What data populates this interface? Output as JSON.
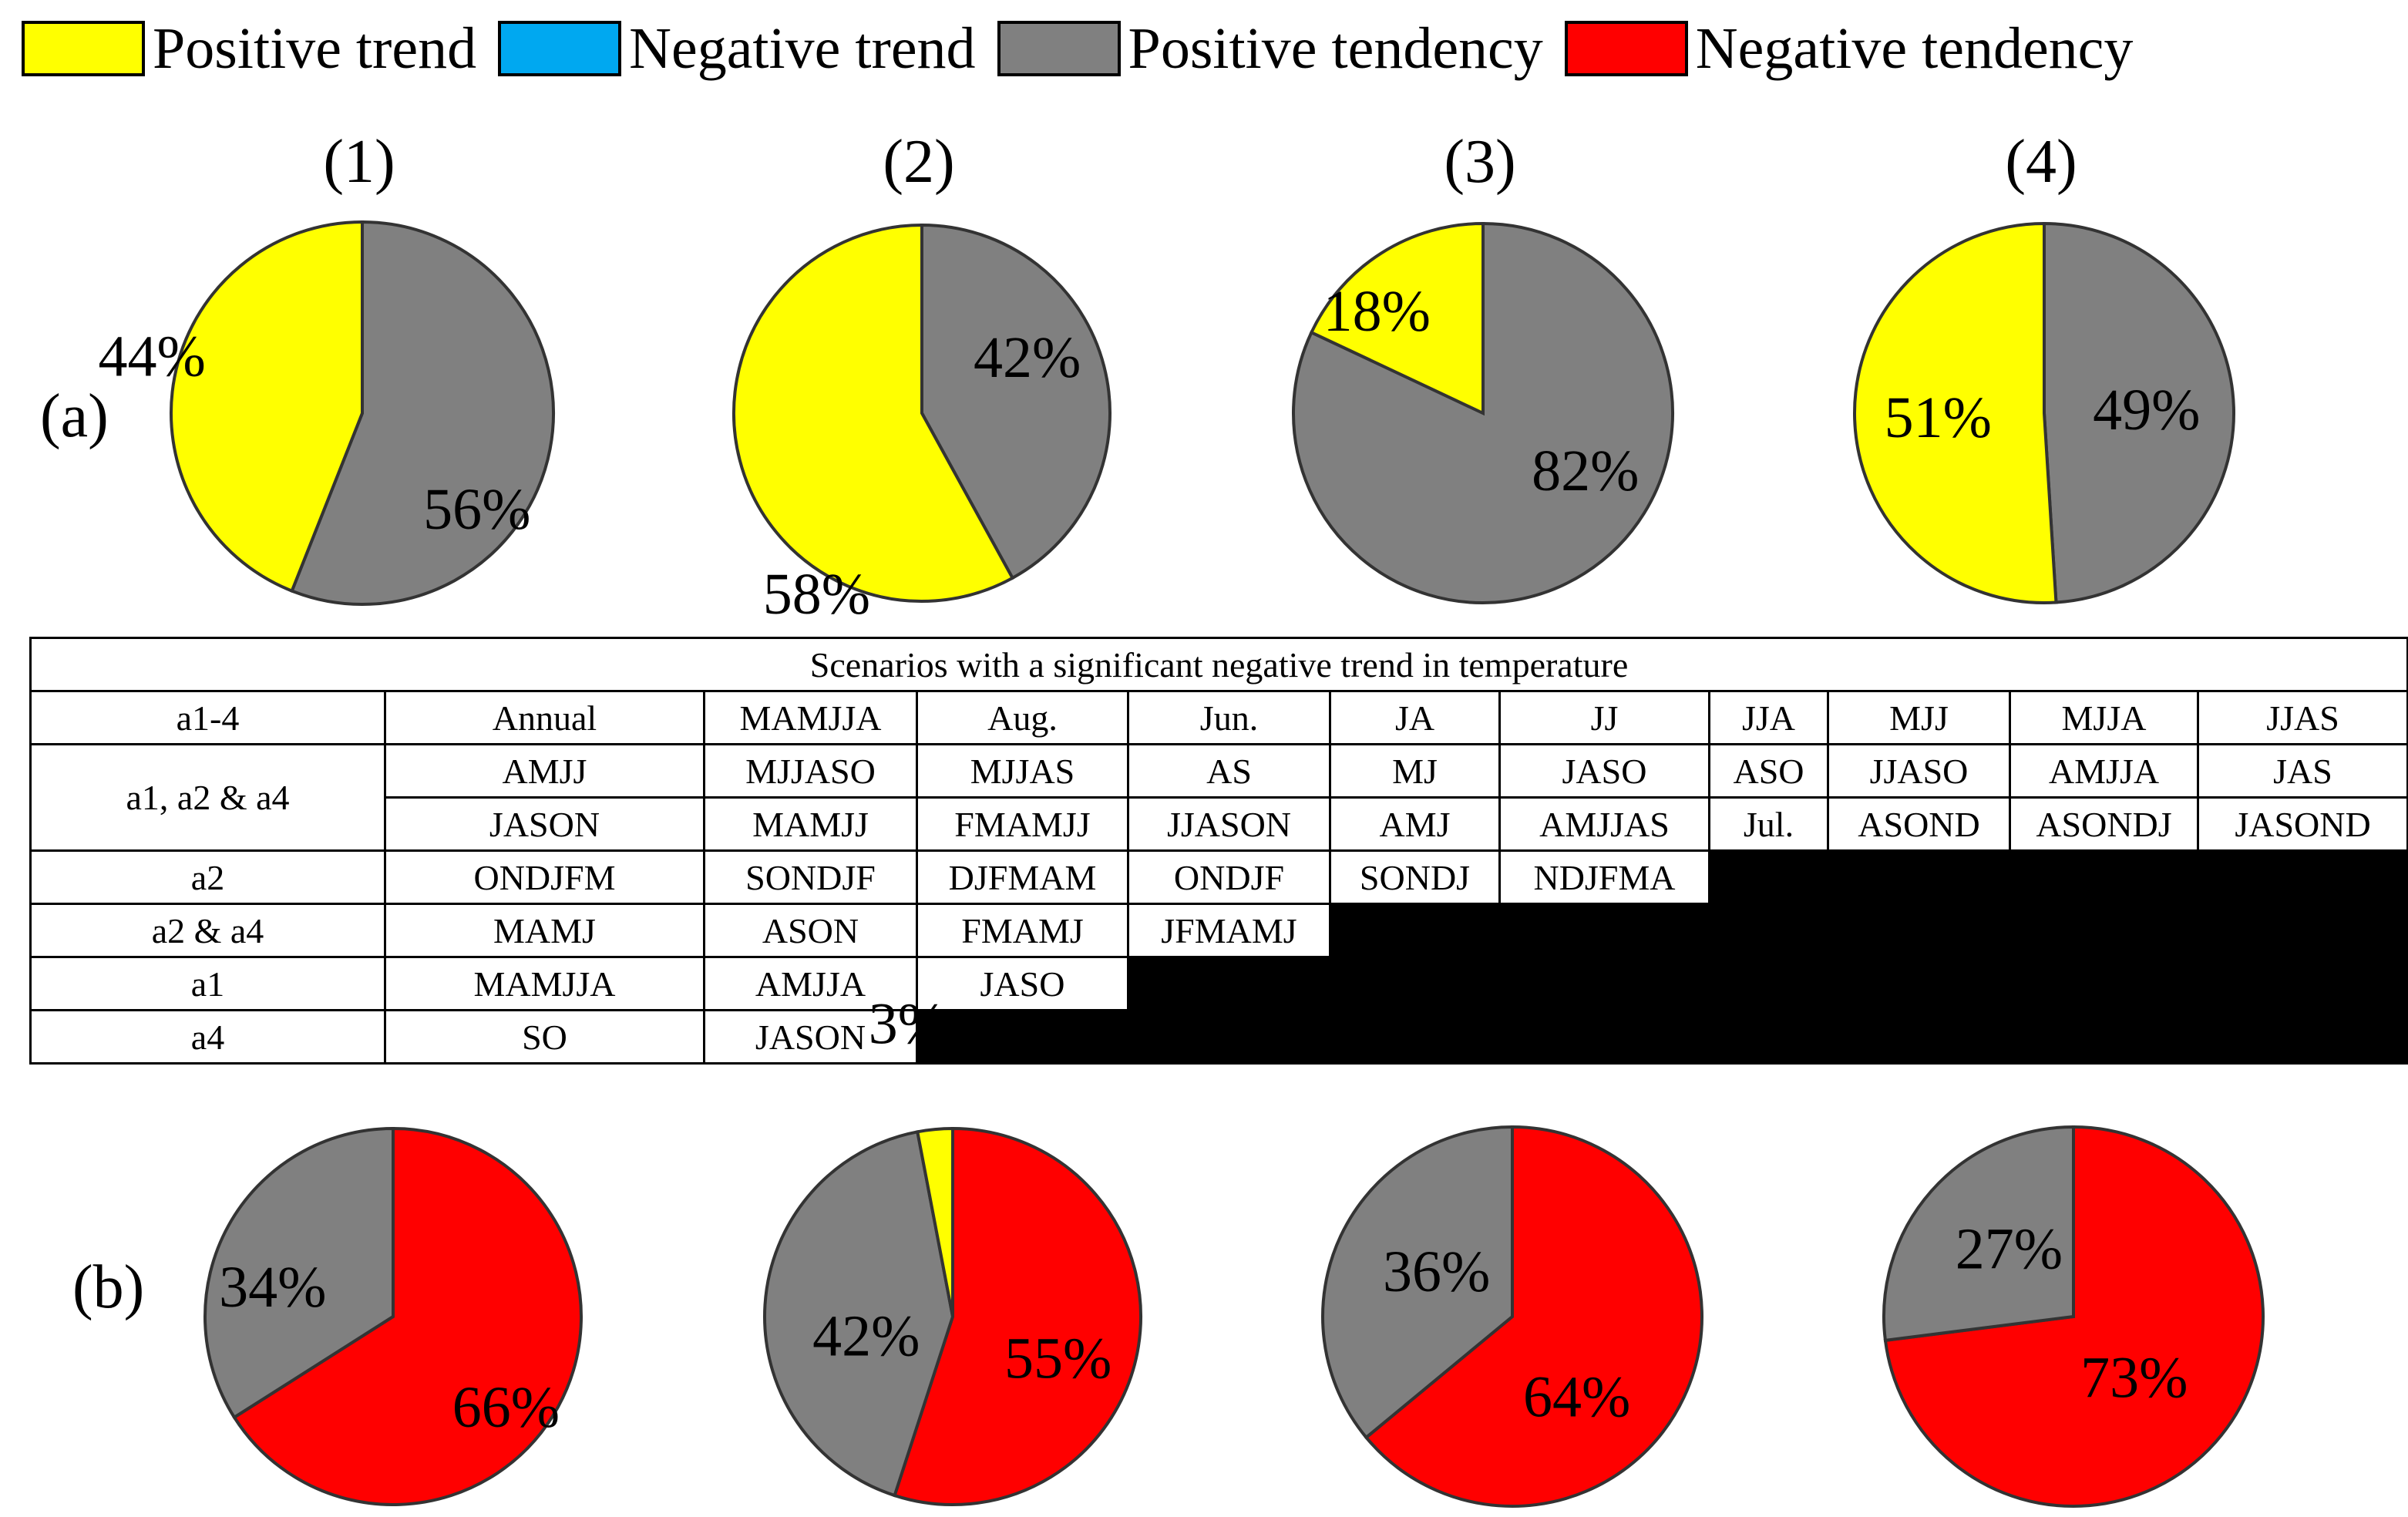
{
  "legend": [
    {
      "label": "Positive trend",
      "color": "#ffff00"
    },
    {
      "label": "Negative trend",
      "color": "#00a8f0"
    },
    {
      "label": "Positive tendency",
      "color": "#808080"
    },
    {
      "label": "Negative tendency",
      "color": "#ff0000"
    }
  ],
  "panels": {
    "a": "(a)",
    "b": "(b)"
  },
  "chart_data": [
    {
      "type": "pie",
      "title": "(1)",
      "panel": "a",
      "slices": [
        {
          "name": "Positive trend",
          "value": 44,
          "label": "44%",
          "color": "#ffff00"
        },
        {
          "name": "Positive tendency",
          "value": 56,
          "label": "56%",
          "color": "#808080"
        }
      ]
    },
    {
      "type": "pie",
      "title": "(2)",
      "panel": "a",
      "slices": [
        {
          "name": "Positive trend",
          "value": 58,
          "label": "58%",
          "color": "#ffff00"
        },
        {
          "name": "Positive tendency",
          "value": 42,
          "label": "42%",
          "color": "#808080"
        }
      ]
    },
    {
      "type": "pie",
      "title": "(3)",
      "panel": "a",
      "slices": [
        {
          "name": "Positive trend",
          "value": 18,
          "label": "18%",
          "color": "#ffff00"
        },
        {
          "name": "Positive tendency",
          "value": 82,
          "label": "82%",
          "color": "#808080"
        }
      ]
    },
    {
      "type": "pie",
      "title": "(4)",
      "panel": "a",
      "slices": [
        {
          "name": "Positive trend",
          "value": 51,
          "label": "51%",
          "color": "#ffff00"
        },
        {
          "name": "Positive tendency",
          "value": 49,
          "label": "49%",
          "color": "#808080"
        }
      ]
    },
    {
      "type": "pie",
      "title": "",
      "panel": "b",
      "slices": [
        {
          "name": "Positive tendency",
          "value": 34,
          "label": "34%",
          "color": "#808080"
        },
        {
          "name": "Negative tendency",
          "value": 66,
          "label": "66%",
          "color": "#ff0000"
        }
      ]
    },
    {
      "type": "pie",
      "title": "",
      "panel": "b",
      "slices": [
        {
          "name": "Positive trend",
          "value": 3,
          "label": "3%",
          "color": "#ffff00"
        },
        {
          "name": "Positive tendency",
          "value": 42,
          "label": "42%",
          "color": "#808080"
        },
        {
          "name": "Negative tendency",
          "value": 55,
          "label": "55%",
          "color": "#ff0000"
        }
      ]
    },
    {
      "type": "pie",
      "title": "",
      "panel": "b",
      "slices": [
        {
          "name": "Positive tendency",
          "value": 36,
          "label": "36%",
          "color": "#808080"
        },
        {
          "name": "Negative tendency",
          "value": 64,
          "label": "64%",
          "color": "#ff0000"
        }
      ]
    },
    {
      "type": "pie",
      "title": "",
      "panel": "b",
      "slices": [
        {
          "name": "Positive tendency",
          "value": 27,
          "label": "27%",
          "color": "#808080"
        },
        {
          "name": "Negative tendency",
          "value": 73,
          "label": "73%",
          "color": "#ff0000"
        }
      ]
    }
  ],
  "table": {
    "title": "Scenarios with a significant  negative  trend in temperature",
    "rows": [
      {
        "label": "a1-4",
        "cells": [
          "Annual",
          "MAMJJA",
          "Aug.",
          "Jun.",
          "JA",
          "JJ",
          "JJA",
          "MJJ",
          "MJJA",
          "JJAS"
        ]
      },
      {
        "label": "a1, a2 & a4",
        "cells": [
          "AMJJ",
          "MJJASO",
          "MJJAS",
          "AS",
          "MJ",
          "JASO",
          "ASO",
          "JJASO",
          "AMJJA",
          "JAS"
        ]
      },
      {
        "label": "",
        "cells": [
          "JASON",
          "MAMJJ",
          "FMAMJJ",
          "JJASON",
          "AMJ",
          "AMJJAS",
          "Jul.",
          "ASOND",
          "ASONDJ",
          "JASOND"
        ]
      },
      {
        "label": "a2",
        "cells": [
          "ONDJFM",
          "SONDJF",
          "DJFMAM",
          "ONDJF",
          "SONDJ",
          "NDJFMA"
        ]
      },
      {
        "label": "a2 & a4",
        "cells": [
          "MAMJ",
          "ASON",
          "FMAMJ",
          "JFMAMJ"
        ]
      },
      {
        "label": "a1",
        "cells": [
          "MAMJJA",
          "AMJJA",
          "JASO"
        ]
      },
      {
        "label": "a4",
        "cells": [
          "SO",
          "JASON"
        ]
      }
    ]
  }
}
